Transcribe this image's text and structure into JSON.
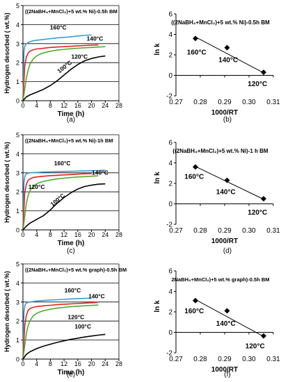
{
  "colors": {
    "black": "#000000",
    "red": "#e8201e",
    "blue": "#3d9ad8",
    "green": "#4cac2a",
    "grid": "#000000"
  },
  "chart_data": [
    {
      "type": "line",
      "panel_label": "(a)",
      "title": "((2NaBH₄+MnCl₂)+5 wt.% Ni)-0.5h BM",
      "xlabel": "Time (h)",
      "ylabel": "Hydrogen desorbed ( wt.%)",
      "xlim": [
        0,
        28
      ],
      "ylim": [
        0,
        5
      ],
      "xticks": [
        "0",
        "4",
        "8",
        "12",
        "16",
        "20",
        "24",
        "28"
      ],
      "yticks": [
        "0",
        "1",
        "2",
        "3",
        "4",
        "5"
      ],
      "grid": "horizontal",
      "series": [
        {
          "name": "160°C",
          "color": "blue",
          "x": [
            0,
            0.3,
            0.6,
            1,
            1.5,
            2,
            3,
            4,
            6,
            8,
            10,
            12,
            14,
            16,
            18,
            20
          ],
          "y": [
            0,
            2.6,
            2.9,
            3.0,
            3.05,
            3.1,
            3.15,
            3.18,
            3.22,
            3.26,
            3.3,
            3.33,
            3.36,
            3.4,
            3.43,
            3.46
          ]
        },
        {
          "name": "140°C",
          "color": "red",
          "x": [
            0,
            0.5,
            1,
            1.5,
            2,
            3,
            4,
            6,
            8,
            10,
            12,
            14,
            16,
            18,
            20,
            22
          ],
          "y": [
            0,
            1.8,
            2.3,
            2.5,
            2.6,
            2.68,
            2.72,
            2.76,
            2.8,
            2.82,
            2.84,
            2.86,
            2.88,
            2.9,
            2.92,
            2.93
          ]
        },
        {
          "name": "120°C",
          "color": "green",
          "x": [
            0,
            0.5,
            1,
            1.5,
            2,
            3,
            4,
            5,
            6,
            8,
            10,
            12,
            14,
            16,
            18,
            20,
            22,
            24
          ],
          "y": [
            0,
            0.6,
            1.2,
            1.6,
            1.9,
            2.2,
            2.35,
            2.45,
            2.52,
            2.6,
            2.66,
            2.7,
            2.73,
            2.76,
            2.78,
            2.8,
            2.82,
            2.84
          ]
        },
        {
          "name": "100°C",
          "color": "black",
          "x": [
            0,
            1,
            2,
            4,
            6,
            8,
            10,
            12,
            14,
            16,
            18,
            20,
            22,
            24
          ],
          "y": [
            0,
            0.2,
            0.3,
            0.45,
            0.6,
            0.8,
            1.05,
            1.35,
            1.65,
            1.9,
            2.1,
            2.22,
            2.3,
            2.35
          ]
        }
      ],
      "annotations": [
        {
          "text": "160°C",
          "x": 10.3,
          "y": 3.75
        },
        {
          "text": "140°C",
          "x": 21,
          "y": 3.15
        },
        {
          "text": "120°C",
          "x": 16.5,
          "y": 2.2
        },
        {
          "text": "100°C",
          "x": 12.5,
          "y": 1.7,
          "rotate": -38
        }
      ]
    },
    {
      "type": "scatter",
      "panel_label": "(b)",
      "title": "((2NaBH₄+MnCl₂)+5 wt.% Ni)-0.5h BM",
      "xlabel": "1000/RT",
      "ylabel": "ln k",
      "xlim": [
        0.27,
        0.31
      ],
      "ylim": [
        -2,
        6
      ],
      "xticks": [
        "0.27",
        "0.28",
        "0.29",
        "0.30",
        "0.31"
      ],
      "yticks": [
        "-2",
        "0",
        "2",
        "4",
        "6"
      ],
      "points": [
        {
          "label": "160°C",
          "x": 0.278,
          "y": 3.6
        },
        {
          "label": "140°C",
          "x": 0.291,
          "y": 2.7
        },
        {
          "label": "120°C",
          "x": 0.306,
          "y": 0.3
        }
      ],
      "fit": {
        "x": [
          0.278,
          0.306
        ],
        "y": [
          3.75,
          0.25
        ]
      },
      "annotations": [
        {
          "text": "160°C",
          "x": 0.2785,
          "y": 2.05
        },
        {
          "text": "140°C",
          "x": 0.2915,
          "y": 1.3
        },
        {
          "text": "120°C",
          "x": 0.3035,
          "y": -1.05
        }
      ]
    },
    {
      "type": "line",
      "panel_label": "(c)",
      "title": "((2NaBH₄+MnCl₂)+5 wt.% Ni)-1h BM",
      "xlabel": "Time (h)",
      "ylabel": "Hydrogen desorbed ( wt.%)",
      "xlim": [
        0,
        28
      ],
      "ylim": [
        0,
        5
      ],
      "xticks": [
        "0",
        "4",
        "8",
        "12",
        "16",
        "20",
        "24",
        "28"
      ],
      "yticks": [
        "0",
        "1",
        "2",
        "3",
        "4",
        "5"
      ],
      "grid": "horizontal",
      "series": [
        {
          "name": "160°C",
          "color": "blue",
          "x": [
            0,
            0.3,
            0.6,
            1,
            2,
            4,
            6,
            8,
            10,
            12,
            14,
            16,
            18,
            20,
            22,
            24
          ],
          "y": [
            0,
            2.5,
            2.85,
            2.95,
            3.0,
            3.02,
            3.04,
            3.05,
            3.06,
            3.07,
            3.08,
            3.09,
            3.1,
            3.11,
            3.12,
            3.13
          ]
        },
        {
          "name": "140°C",
          "color": "red",
          "x": [
            0,
            0.5,
            1,
            1.5,
            2,
            3,
            4,
            6,
            8,
            10,
            12,
            14,
            16,
            18,
            20
          ],
          "y": [
            0,
            1.9,
            2.4,
            2.6,
            2.68,
            2.75,
            2.78,
            2.82,
            2.85,
            2.87,
            2.89,
            2.91,
            2.93,
            2.95,
            2.96
          ]
        },
        {
          "name": "120°C",
          "color": "green",
          "x": [
            0,
            0.5,
            1,
            1.5,
            2,
            3,
            4,
            5,
            6,
            8,
            10,
            12,
            14,
            16,
            18,
            20,
            22
          ],
          "y": [
            0,
            0.7,
            1.4,
            1.8,
            2.05,
            2.3,
            2.42,
            2.5,
            2.55,
            2.62,
            2.68,
            2.72,
            2.75,
            2.78,
            2.8,
            2.82,
            2.84
          ]
        },
        {
          "name": "100°C",
          "color": "black",
          "x": [
            0,
            1,
            2,
            4,
            6,
            8,
            10,
            12,
            14,
            16,
            18,
            20,
            22,
            24
          ],
          "y": [
            0,
            0.2,
            0.35,
            0.55,
            0.75,
            1.05,
            1.4,
            1.7,
            1.95,
            2.15,
            2.28,
            2.35,
            2.4,
            2.42
          ]
        }
      ],
      "annotations": [
        {
          "text": "160°C",
          "x": 11.5,
          "y": 3.4
        },
        {
          "text": "140°C",
          "x": 22.5,
          "y": 2.9
        },
        {
          "text": "120°C",
          "x": 4,
          "y": 2.15
        },
        {
          "text": "100°C",
          "x": 10.5,
          "y": 1.5,
          "rotate": -40
        }
      ]
    },
    {
      "type": "scatter",
      "panel_label": "(d)",
      "title": "((2NaBH₄+MnCl₂)+5 wt.% Ni)-1 h BM",
      "xlabel": "1000/RT",
      "ylabel": "ln k",
      "xlim": [
        0.27,
        0.31
      ],
      "ylim": [
        -2,
        6
      ],
      "xticks": [
        "0.27",
        "0.28",
        "0.29",
        "0.30",
        "0.31"
      ],
      "yticks": [
        "-2",
        "0",
        "2",
        "4",
        "6"
      ],
      "points": [
        {
          "label": "160°C",
          "x": 0.278,
          "y": 3.6
        },
        {
          "label": "140°C",
          "x": 0.291,
          "y": 2.3
        },
        {
          "label": "120°C",
          "x": 0.306,
          "y": 0.5
        }
      ],
      "fit": {
        "x": [
          0.278,
          0.306
        ],
        "y": [
          3.65,
          0.45
        ]
      },
      "annotations": [
        {
          "text": "160°C",
          "x": 0.2775,
          "y": 2.45
        },
        {
          "text": "140°C",
          "x": 0.2905,
          "y": 0.95
        },
        {
          "text": "120°C",
          "x": 0.3035,
          "y": -1.05
        }
      ]
    },
    {
      "type": "line",
      "panel_label": "(e)",
      "title": "((2NaBH₄+MnCl₂)+5 wt.% graph)-0.5h BM",
      "xlabel": "Time (h)",
      "ylabel": "Hydrogen desorbed ( wt.%)",
      "xlim": [
        0,
        28
      ],
      "ylim": [
        0,
        5
      ],
      "xticks": [
        "0",
        "4",
        "8",
        "12",
        "16",
        "20",
        "24",
        "28"
      ],
      "yticks": [
        "0",
        "1",
        "2",
        "3",
        "4",
        "5"
      ],
      "grid": "horizontal",
      "series": [
        {
          "name": "160°C",
          "color": "blue",
          "x": [
            0,
            0.3,
            0.6,
            1,
            2,
            4,
            6,
            8,
            10,
            12,
            14,
            16,
            18,
            20
          ],
          "y": [
            0,
            2.5,
            2.85,
            2.95,
            3.0,
            3.05,
            3.08,
            3.1,
            3.12,
            3.14,
            3.16,
            3.18,
            3.19,
            3.2
          ]
        },
        {
          "name": "140°C",
          "color": "red",
          "x": [
            0,
            0.5,
            1,
            1.5,
            2,
            3,
            4,
            6,
            8,
            10,
            12,
            14,
            16,
            18,
            20,
            22
          ],
          "y": [
            0,
            1.7,
            2.3,
            2.55,
            2.65,
            2.72,
            2.76,
            2.8,
            2.83,
            2.86,
            2.88,
            2.9,
            2.92,
            2.94,
            2.96,
            2.98
          ]
        },
        {
          "name": "120°C",
          "color": "green",
          "x": [
            0,
            0.5,
            1,
            1.5,
            2,
            3,
            4,
            5,
            6,
            8,
            10,
            12,
            14,
            16,
            18,
            20,
            22
          ],
          "y": [
            0,
            0.7,
            1.35,
            1.75,
            2.0,
            2.28,
            2.4,
            2.48,
            2.54,
            2.62,
            2.68,
            2.72,
            2.75,
            2.78,
            2.8,
            2.82,
            2.84
          ]
        },
        {
          "name": "100°C",
          "color": "black",
          "x": [
            0,
            1,
            2,
            4,
            6,
            8,
            10,
            12,
            14,
            16,
            18,
            20,
            22,
            24
          ],
          "y": [
            0,
            0.25,
            0.38,
            0.55,
            0.68,
            0.78,
            0.88,
            0.96,
            1.04,
            1.1,
            1.16,
            1.21,
            1.26,
            1.3
          ]
        }
      ],
      "annotations": [
        {
          "text": "160°C",
          "x": 14.5,
          "y": 3.5
        },
        {
          "text": "140°C",
          "x": 21.5,
          "y": 3.2
        },
        {
          "text": "120°C",
          "x": 15.5,
          "y": 2.1
        },
        {
          "text": "100°C",
          "x": 17.5,
          "y": 1.6
        }
      ]
    },
    {
      "type": "scatter",
      "panel_label": "(f)",
      "title": "2NaBH₄+MnCl₂)+5 wt.% graph)-0.5h BM",
      "xlabel": "1000/RT",
      "ylabel": "ln k",
      "xlim": [
        0.27,
        0.31
      ],
      "ylim": [
        -2,
        6
      ],
      "xticks": [
        "0.27",
        "0.28",
        "0.29",
        "0.30",
        "0.31"
      ],
      "yticks": [
        "-2",
        "0",
        "2",
        "4",
        "6"
      ],
      "points": [
        {
          "label": "160°C",
          "x": 0.278,
          "y": 3.1
        },
        {
          "label": "140°C",
          "x": 0.291,
          "y": 2.1
        },
        {
          "label": "120°C",
          "x": 0.306,
          "y": -0.35
        }
      ],
      "fit": {
        "x": [
          0.278,
          0.306
        ],
        "y": [
          3.2,
          -0.4
        ]
      },
      "annotations": [
        {
          "text": "160°C",
          "x": 0.2775,
          "y": 1.85
        },
        {
          "text": "140°C",
          "x": 0.2905,
          "y": 0.65
        },
        {
          "text": "120°C",
          "x": 0.3025,
          "y": -1.55
        }
      ]
    }
  ]
}
